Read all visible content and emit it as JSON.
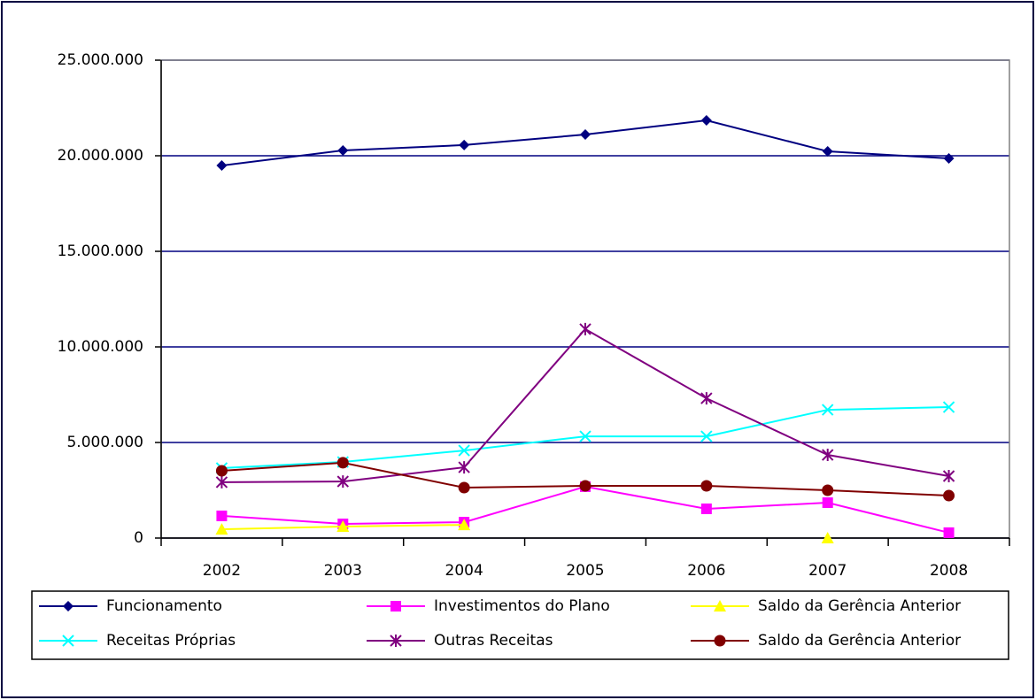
{
  "chart_data": {
    "type": "line",
    "categories": [
      "2002",
      "2003",
      "2004",
      "2005",
      "2006",
      "2007",
      "2008"
    ],
    "series": [
      {
        "name": "Funcionamento",
        "color": "#000080",
        "marker": "diamond",
        "values": [
          19490000,
          20280000,
          20560000,
          21110000,
          21850000,
          20230000,
          19860000
        ]
      },
      {
        "name": "Investimentos do Plano",
        "color": "#ff00ff",
        "marker": "square",
        "values": [
          1160000,
          740000,
          830000,
          2690000,
          1530000,
          1850000,
          280000
        ]
      },
      {
        "name": "Saldo da Gerência Anterior",
        "color": "#ffff00",
        "marker": "triangle",
        "values": [
          460000,
          600000,
          690000,
          null,
          null,
          0,
          null
        ]
      },
      {
        "name": "Receitas Próprias",
        "color": "#00ffff",
        "marker": "x",
        "values": [
          3660000,
          3980000,
          4580000,
          5320000,
          5320000,
          6710000,
          6850000
        ]
      },
      {
        "name": "Outras Receitas",
        "color": "#800080",
        "marker": "star",
        "values": [
          2920000,
          2960000,
          3700000,
          10930000,
          7310000,
          4350000,
          3240000
        ]
      },
      {
        "name": "Saldo da Gerência Anterior",
        "color": "#800000",
        "marker": "circle",
        "values": [
          3520000,
          3940000,
          2640000,
          2730000,
          2730000,
          2500000,
          2220000
        ]
      }
    ],
    "ylim": [
      0,
      25000000
    ],
    "yticks": [
      0,
      {
        "value": 5000000,
        "label": "5.000.000"
      },
      {
        "value": 10000000,
        "label": "10.000.000"
      },
      {
        "value": 15000000,
        "label": "15.000.000"
      },
      {
        "value": 20000000,
        "label": "20.000.000"
      },
      {
        "value": 25000000,
        "label": "25.000.000"
      }
    ],
    "grid": true,
    "legend": "bottom"
  }
}
